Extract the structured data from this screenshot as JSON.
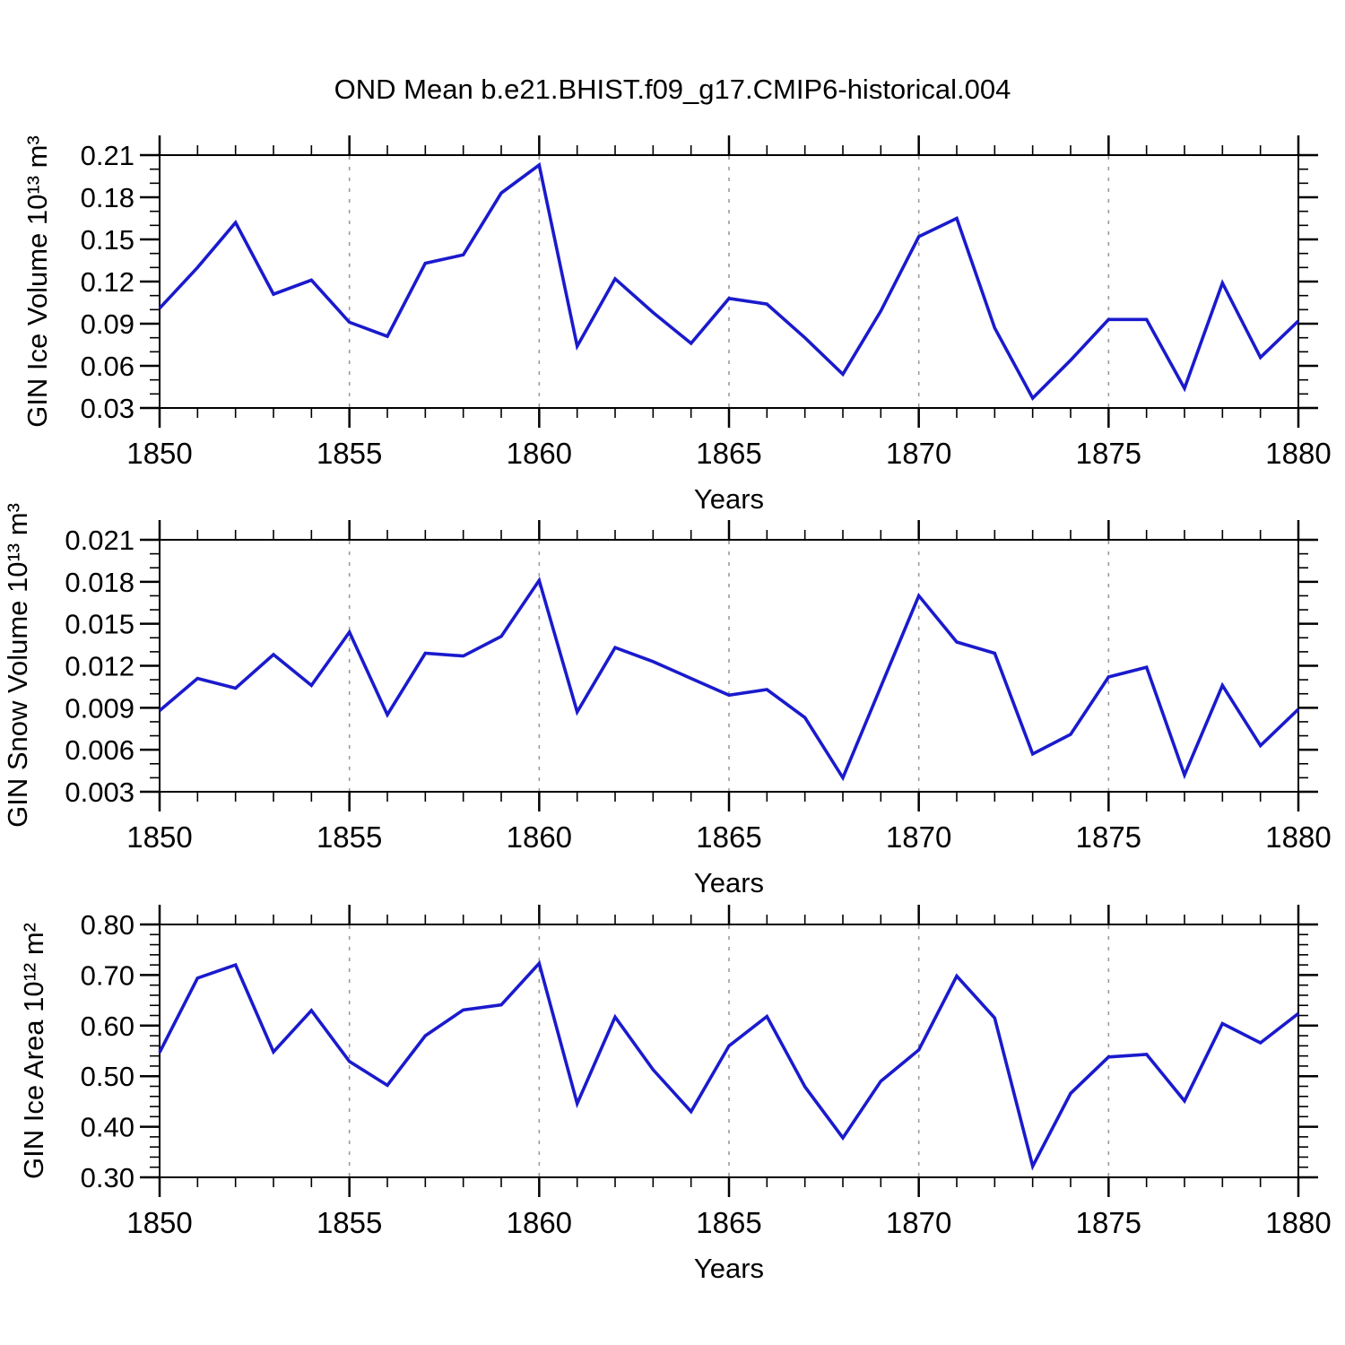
{
  "title": "OND Mean b.e21.BHIST.f09_g17.CMIP6-historical.004",
  "colors": {
    "line": "#1a1acd",
    "axis": "#000000",
    "grid": "#9b9b9b",
    "background": "#ffffff"
  },
  "x_axis": {
    "label": "Years",
    "min": 1850,
    "max": 1880,
    "tick_values": [
      1850,
      1855,
      1860,
      1865,
      1870,
      1875,
      1880
    ],
    "tick_labels": [
      "1850",
      "1855",
      "1860",
      "1865",
      "1870",
      "1875",
      "1880"
    ],
    "minor_step": 1,
    "grid_values": [
      1855,
      1860,
      1865,
      1870,
      1875
    ]
  },
  "chart_data": [
    {
      "type": "line",
      "title": "OND Mean b.e21.BHIST.f09_g17.CMIP6-historical.004",
      "ylabel": "GIN Ice Volume 10¹³ m³",
      "xlabel": "Years",
      "legend": "none",
      "grid": "vertical-dashed",
      "ylim": [
        0.03,
        0.21
      ],
      "ytick_values": [
        0.03,
        0.06,
        0.09,
        0.12,
        0.15,
        0.18,
        0.21
      ],
      "ytick_labels": [
        "0.03",
        "0.06",
        "0.09",
        "0.12",
        "0.15",
        "0.18",
        "0.21"
      ],
      "yminor_step": 0.01,
      "x": [
        1850,
        1851,
        1852,
        1853,
        1854,
        1855,
        1856,
        1857,
        1858,
        1859,
        1860,
        1861,
        1862,
        1863,
        1864,
        1865,
        1866,
        1867,
        1868,
        1869,
        1870,
        1871,
        1872,
        1873,
        1874,
        1875,
        1876,
        1877,
        1878,
        1879,
        1880
      ],
      "values": [
        0.101,
        0.13,
        0.162,
        0.111,
        0.121,
        0.091,
        0.081,
        0.133,
        0.139,
        0.183,
        0.203,
        0.074,
        0.122,
        0.098,
        0.076,
        0.108,
        0.104,
        0.08,
        0.054,
        0.099,
        0.152,
        0.165,
        0.087,
        0.037,
        0.064,
        0.093,
        0.093,
        0.044,
        0.119,
        0.066,
        0.092
      ]
    },
    {
      "type": "line",
      "title": "",
      "ylabel": "GIN Snow Volume 10¹³ m³",
      "xlabel": "Years",
      "legend": "none",
      "grid": "vertical-dashed",
      "ylim": [
        0.003,
        0.021
      ],
      "ytick_values": [
        0.003,
        0.006,
        0.009,
        0.012,
        0.015,
        0.018,
        0.021
      ],
      "ytick_labels": [
        "0.003",
        "0.006",
        "0.009",
        "0.012",
        "0.015",
        "0.018",
        "0.021"
      ],
      "yminor_step": 0.001,
      "x": [
        1850,
        1851,
        1852,
        1853,
        1854,
        1855,
        1856,
        1857,
        1858,
        1859,
        1860,
        1861,
        1862,
        1863,
        1864,
        1865,
        1866,
        1867,
        1868,
        1869,
        1870,
        1871,
        1872,
        1873,
        1874,
        1875,
        1876,
        1877,
        1878,
        1879,
        1880
      ],
      "values": [
        0.0088,
        0.0111,
        0.0104,
        0.0128,
        0.0106,
        0.0144,
        0.0085,
        0.0129,
        0.0127,
        0.0141,
        0.0181,
        0.0087,
        0.0133,
        0.0123,
        0.0111,
        0.0099,
        0.0103,
        0.0083,
        0.004,
        0.0105,
        0.017,
        0.0137,
        0.0129,
        0.0057,
        0.0071,
        0.0112,
        0.0119,
        0.0042,
        0.0106,
        0.0063,
        0.0089
      ]
    },
    {
      "type": "line",
      "title": "",
      "ylabel": "GIN Ice Area 10¹² m²",
      "xlabel": "Years",
      "legend": "none",
      "grid": "vertical-dashed",
      "ylim": [
        0.3,
        0.8
      ],
      "ytick_values": [
        0.3,
        0.4,
        0.5,
        0.6,
        0.7,
        0.8
      ],
      "ytick_labels": [
        "0.30",
        "0.40",
        "0.50",
        "0.60",
        "0.70",
        "0.80"
      ],
      "yminor_step": 0.02,
      "x": [
        1850,
        1851,
        1852,
        1853,
        1854,
        1855,
        1856,
        1857,
        1858,
        1859,
        1860,
        1861,
        1862,
        1863,
        1864,
        1865,
        1866,
        1867,
        1868,
        1869,
        1870,
        1871,
        1872,
        1873,
        1874,
        1875,
        1876,
        1877,
        1878,
        1879,
        1880
      ],
      "values": [
        0.547,
        0.694,
        0.72,
        0.548,
        0.63,
        0.529,
        0.482,
        0.58,
        0.631,
        0.641,
        0.723,
        0.446,
        0.617,
        0.513,
        0.43,
        0.56,
        0.618,
        0.479,
        0.378,
        0.49,
        0.552,
        0.698,
        0.615,
        0.322,
        0.466,
        0.538,
        0.543,
        0.451,
        0.604,
        0.566,
        0.624
      ]
    }
  ]
}
